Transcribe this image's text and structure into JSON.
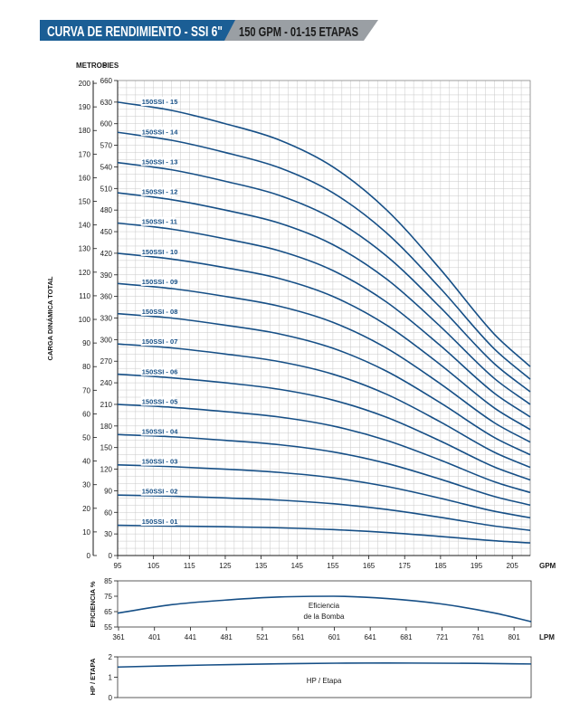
{
  "header": {
    "title": "CURVA DE RENDIMIENTO - SSI 6\"",
    "subtitle": "150 GPM - 01-15 ETAPAS",
    "title_bg": "#1b5e95",
    "subtitle_bg": "#9a9fa4"
  },
  "colors": {
    "curve": "#164f86",
    "grid": "#c8c8c8",
    "axis": "#1a1a1a"
  },
  "chart_data": [
    {
      "type": "line",
      "title": "",
      "ylabel": "CARGA DINÁMICA TOTAL",
      "y_unit_left": "METROS",
      "y_unit_right": "PIES",
      "x_unit": "GPM",
      "xlim": [
        95,
        210
      ],
      "ylim_pies": [
        0,
        660
      ],
      "x_ticks": [
        95,
        105,
        115,
        125,
        135,
        145,
        155,
        165,
        175,
        185,
        195,
        205
      ],
      "metros_ticks": [
        0,
        10,
        20,
        30,
        40,
        50,
        60,
        70,
        80,
        90,
        100,
        110,
        120,
        130,
        140,
        150,
        160,
        170,
        180,
        190,
        200
      ],
      "pies_ticks": [
        0,
        30,
        60,
        90,
        120,
        150,
        180,
        210,
        240,
        270,
        300,
        330,
        360,
        390,
        420,
        450,
        480,
        510,
        540,
        570,
        600,
        630,
        660
      ],
      "x": [
        95,
        110,
        125,
        140,
        155,
        170,
        185,
        200,
        210
      ],
      "series": [
        {
          "name": "150SSI - 01",
          "values": [
            42,
            41,
            40,
            38.5,
            36,
            32,
            26.5,
            20.5,
            17.5
          ]
        },
        {
          "name": "150SSI - 02",
          "values": [
            84,
            82.5,
            80,
            77,
            72,
            64,
            53,
            41,
            35
          ]
        },
        {
          "name": "150SSI - 03",
          "values": [
            126,
            123.5,
            120,
            115.5,
            108,
            96,
            79.5,
            61.5,
            52.5
          ]
        },
        {
          "name": "150SSI - 04",
          "values": [
            168,
            165,
            160,
            154,
            144,
            128,
            106,
            82,
            70
          ]
        },
        {
          "name": "150SSI - 05",
          "values": [
            210,
            206,
            200,
            192.5,
            180,
            160,
            132.5,
            102.5,
            87.5
          ]
        },
        {
          "name": "150SSI - 06",
          "values": [
            252,
            247,
            240,
            231,
            216,
            192,
            159,
            123,
            105
          ]
        },
        {
          "name": "150SSI - 07",
          "values": [
            294,
            288.5,
            280,
            269.5,
            252,
            224,
            185.5,
            143.5,
            122.5
          ]
        },
        {
          "name": "150SSI - 08",
          "values": [
            336,
            330,
            320,
            308,
            288,
            256,
            212,
            164,
            140
          ]
        },
        {
          "name": "150SSI - 09",
          "values": [
            378,
            371,
            360,
            346.5,
            324,
            288,
            238.5,
            184.5,
            157.5
          ]
        },
        {
          "name": "150SSI - 10",
          "values": [
            420,
            412,
            400,
            385,
            360,
            320,
            265,
            205,
            175
          ]
        },
        {
          "name": "150SSI - 11",
          "values": [
            462,
            453.5,
            440,
            423.5,
            396,
            352,
            291.5,
            225.5,
            192.5
          ]
        },
        {
          "name": "150SSI - 12",
          "values": [
            504,
            494.5,
            480,
            462,
            432,
            384,
            318,
            246,
            210
          ]
        },
        {
          "name": "150SSI - 13",
          "values": [
            546,
            536,
            520,
            500.5,
            468,
            416,
            344.5,
            266.5,
            227.5
          ]
        },
        {
          "name": "150SSI - 14",
          "values": [
            588,
            577,
            560,
            539,
            504,
            448,
            371,
            287,
            245
          ]
        },
        {
          "name": "150SSI - 15",
          "values": [
            630,
            618.5,
            600,
            577.5,
            540,
            480,
            397.5,
            307.5,
            262.5
          ]
        }
      ]
    },
    {
      "type": "line",
      "ylabel": "EFICIENCIA %",
      "x_unit": "LPM",
      "xlim": [
        360,
        820
      ],
      "ylim": [
        55,
        85
      ],
      "x_ticks": [
        361,
        401,
        441,
        481,
        521,
        561,
        601,
        641,
        681,
        721,
        761,
        801
      ],
      "y_ticks": [
        55,
        65,
        75,
        85
      ],
      "annotation": [
        "Eficiencia",
        "de la Bomba"
      ],
      "x": [
        360,
        420,
        480,
        540,
        600,
        660,
        720,
        780,
        820
      ],
      "series": [
        {
          "name": "Eficiencia de la Bomba",
          "values": [
            64,
            69.5,
            72.5,
            74.5,
            75,
            73.5,
            70,
            64,
            58.5
          ]
        }
      ]
    },
    {
      "type": "line",
      "ylabel": "HP / ETAPA",
      "xlim": [
        360,
        820
      ],
      "ylim": [
        0,
        2
      ],
      "y_ticks": [
        0,
        1,
        2
      ],
      "annotation": "HP / Etapa",
      "x": [
        360,
        460,
        560,
        660,
        760,
        820
      ],
      "series": [
        {
          "name": "HP / Etapa",
          "values": [
            1.5,
            1.6,
            1.67,
            1.7,
            1.68,
            1.65
          ]
        }
      ]
    }
  ]
}
